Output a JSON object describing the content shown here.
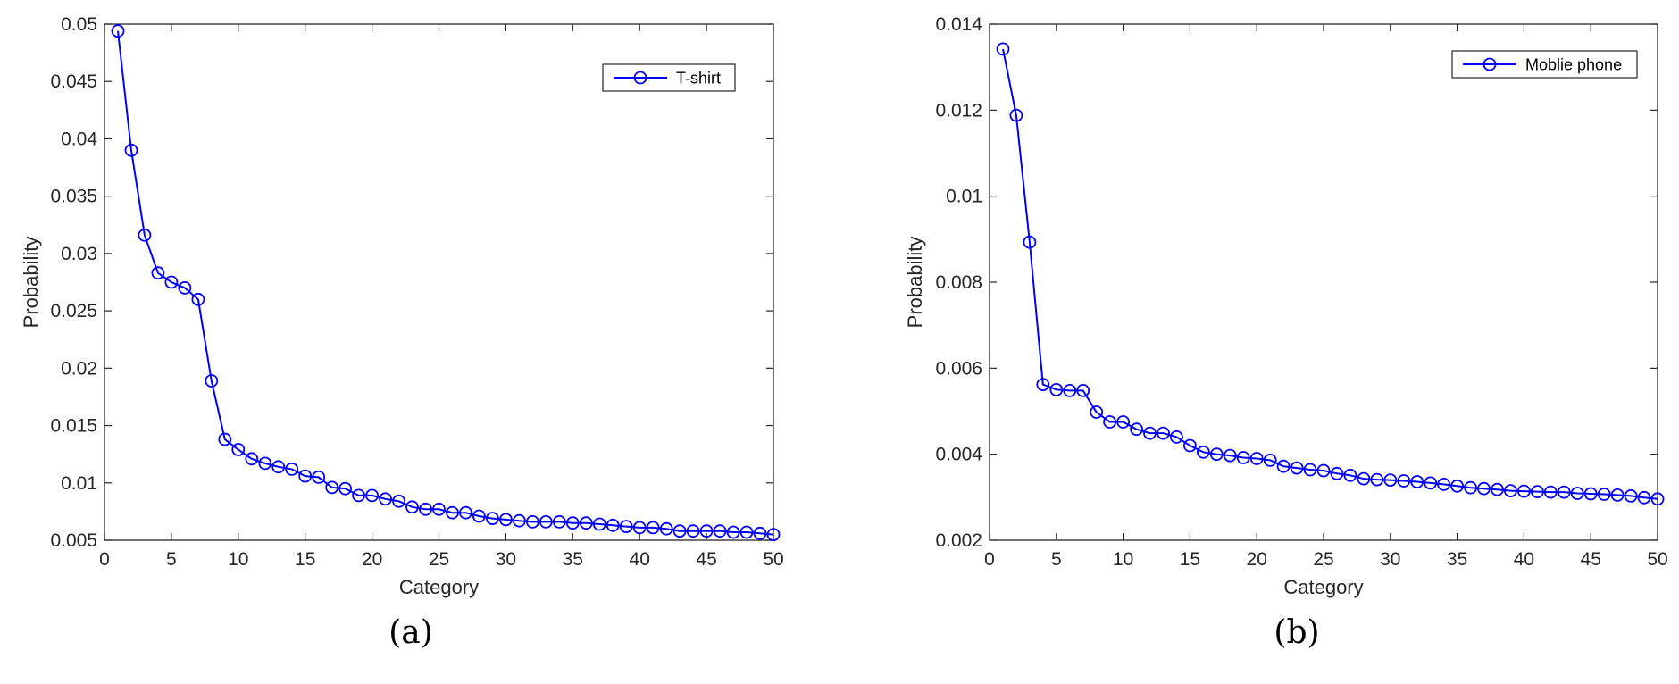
{
  "chart_data": [
    {
      "type": "line",
      "caption": "(a)",
      "xlabel": "Category",
      "ylabel": "Probability",
      "xlim": [
        0,
        50
      ],
      "ylim": [
        0.005,
        0.05
      ],
      "xticks": [
        0,
        5,
        10,
        15,
        20,
        25,
        30,
        35,
        40,
        45,
        50
      ],
      "xtick_labels": [
        "0",
        "5",
        "10",
        "15",
        "20",
        "25",
        "30",
        "35",
        "40",
        "45",
        "50"
      ],
      "yticks": [
        0.005,
        0.01,
        0.015,
        0.02,
        0.025,
        0.03,
        0.035,
        0.04,
        0.045,
        0.05
      ],
      "ytick_labels": [
        "0.005",
        "0.01",
        "0.015",
        "0.02",
        "0.025",
        "0.03",
        "0.035",
        "0.04",
        "0.045",
        "0.05"
      ],
      "grid": false,
      "legend_position": "top-right",
      "color": "#0000ff",
      "series": [
        {
          "name": "T-shirt",
          "x": [
            1,
            2,
            3,
            4,
            5,
            6,
            7,
            8,
            9,
            10,
            11,
            12,
            13,
            14,
            15,
            16,
            17,
            18,
            19,
            20,
            21,
            22,
            23,
            24,
            25,
            26,
            27,
            28,
            29,
            30,
            31,
            32,
            33,
            34,
            35,
            36,
            37,
            38,
            39,
            40,
            41,
            42,
            43,
            44,
            45,
            46,
            47,
            48,
            49,
            50
          ],
          "values": [
            0.0494,
            0.039,
            0.0316,
            0.0283,
            0.0275,
            0.027,
            0.026,
            0.0189,
            0.0138,
            0.0129,
            0.0121,
            0.0117,
            0.0114,
            0.0112,
            0.0106,
            0.0105,
            0.0096,
            0.0095,
            0.0089,
            0.0089,
            0.0086,
            0.0084,
            0.0079,
            0.0077,
            0.0077,
            0.0074,
            0.0074,
            0.0071,
            0.0069,
            0.0068,
            0.0067,
            0.0066,
            0.0066,
            0.0066,
            0.0065,
            0.0065,
            0.0064,
            0.0063,
            0.0062,
            0.0061,
            0.0061,
            0.006,
            0.0058,
            0.0058,
            0.0058,
            0.0058,
            0.0057,
            0.0057,
            0.0056,
            0.0055
          ]
        }
      ]
    },
    {
      "type": "line",
      "caption": "(b)",
      "xlabel": "Category",
      "ylabel": "Probability",
      "xlim": [
        0,
        50
      ],
      "ylim": [
        0.002,
        0.014
      ],
      "xticks": [
        0,
        5,
        10,
        15,
        20,
        25,
        30,
        35,
        40,
        45,
        50
      ],
      "xtick_labels": [
        "0",
        "5",
        "10",
        "15",
        "20",
        "25",
        "30",
        "35",
        "40",
        "45",
        "50"
      ],
      "yticks": [
        0.002,
        0.004,
        0.006,
        0.008,
        0.01,
        0.012,
        0.014
      ],
      "ytick_labels": [
        "0.002",
        "0.004",
        "0.006",
        "0.008",
        "0.01",
        "0.012",
        "0.014"
      ],
      "grid": false,
      "legend_position": "top-right",
      "color": "#0000ff",
      "series": [
        {
          "name": "Moblie phone",
          "x": [
            1,
            2,
            3,
            4,
            5,
            6,
            7,
            8,
            9,
            10,
            11,
            12,
            13,
            14,
            15,
            16,
            17,
            18,
            19,
            20,
            21,
            22,
            23,
            24,
            25,
            26,
            27,
            28,
            29,
            30,
            31,
            32,
            33,
            34,
            35,
            36,
            37,
            38,
            39,
            40,
            41,
            42,
            43,
            44,
            45,
            46,
            47,
            48,
            49,
            50
          ],
          "values": [
            0.01342,
            0.01188,
            0.00893,
            0.00562,
            0.0055,
            0.00548,
            0.00548,
            0.00498,
            0.00475,
            0.00475,
            0.00458,
            0.00449,
            0.00449,
            0.0044,
            0.0042,
            0.00405,
            0.004,
            0.00397,
            0.00392,
            0.0039,
            0.00386,
            0.00372,
            0.00368,
            0.00364,
            0.00362,
            0.00355,
            0.00351,
            0.00343,
            0.00341,
            0.0034,
            0.00338,
            0.00336,
            0.00333,
            0.0033,
            0.00326,
            0.00322,
            0.0032,
            0.00318,
            0.00315,
            0.00314,
            0.00313,
            0.00312,
            0.00312,
            0.00309,
            0.00308,
            0.00307,
            0.00305,
            0.00303,
            0.00299,
            0.00296
          ]
        }
      ]
    }
  ]
}
